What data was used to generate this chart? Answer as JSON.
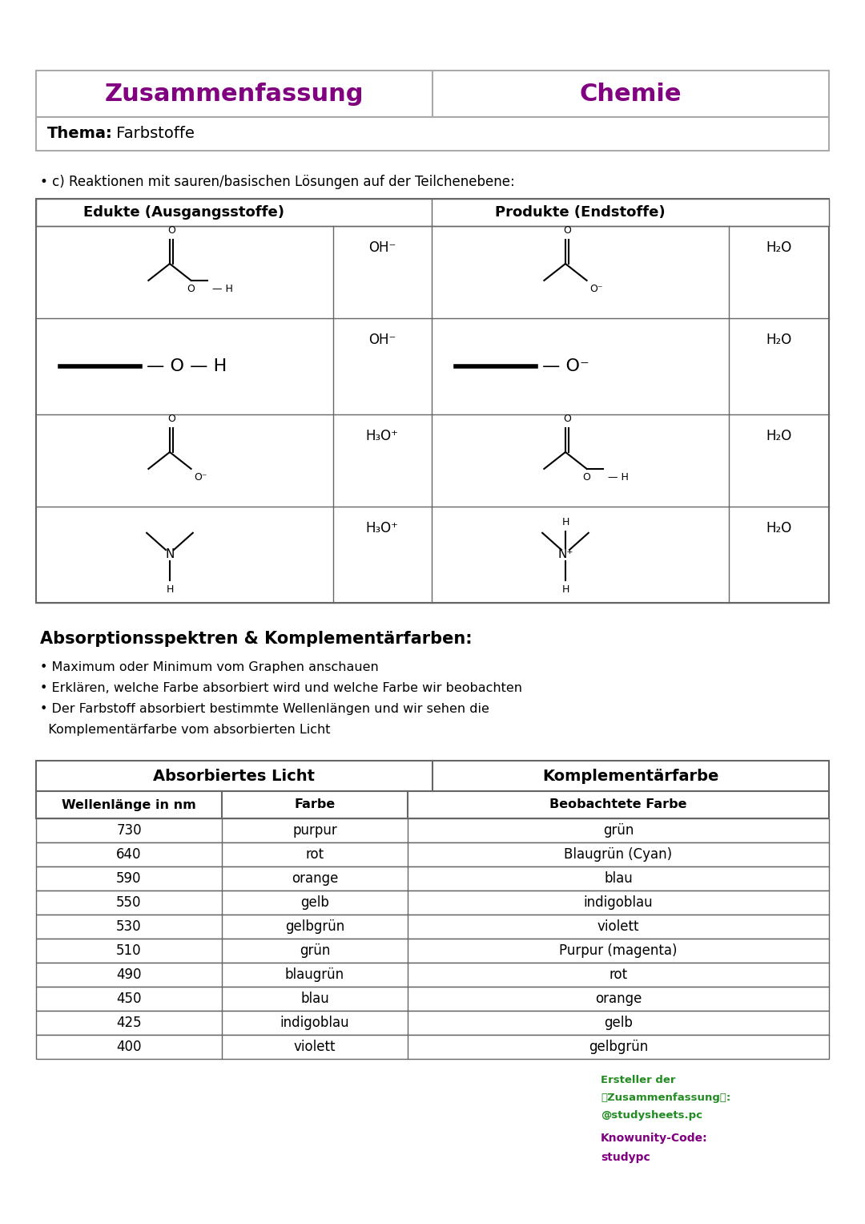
{
  "title_left": "Zusammenfassung",
  "title_right": "Chemie",
  "title_color": "#800080",
  "thema_label": "Thema:",
  "thema_value": " Farbstoffe",
  "bullet_c": "• c) Reaktionen mit sauren/basischen Lösungen auf der Teilchenebene:",
  "table1_col1": "Edukte (Ausgangsstoffe)",
  "table1_col2": "Produkte (Endstoffe)",
  "reagents": [
    "OH⁻",
    "OH⁻",
    "H₃O⁺",
    "H₃O⁺"
  ],
  "products_right": [
    "H₂O",
    "H₂O",
    "H₂O",
    "H₂O"
  ],
  "section2_title": "Absorptionsspektren & Komplementärfarben:",
  "section2_bullets": [
    "• Maximum oder Minimum vom Graphen anschauen",
    "• Erklären, welche Farbe absorbiert wird und welche Farbe wir beobachten",
    "• Der Farbstoff absorbiert bestimmte Wellenlängen und wir sehen die",
    "  Komplementärfarbe vom absorbierten Licht"
  ],
  "table2_header1": "Absorbiertes Licht",
  "table2_header2": "Komplementärfarbe",
  "table2_subheader": [
    "Wellenlänge in nm",
    "Farbe",
    "Beobachtete Farbe"
  ],
  "table2_rows": [
    [
      "730",
      "purpur",
      "grün"
    ],
    [
      "640",
      "rot",
      "Blaugrün (Cyan)"
    ],
    [
      "590",
      "orange",
      "blau"
    ],
    [
      "550",
      "gelb",
      "indigoblau"
    ],
    [
      "530",
      "gelbgrün",
      "violett"
    ],
    [
      "510",
      "grün",
      "Purpur (magenta)"
    ],
    [
      "490",
      "blaugrün",
      "rot"
    ],
    [
      "450",
      "blau",
      "orange"
    ],
    [
      "425",
      "indigoblau",
      "gelb"
    ],
    [
      "400",
      "violett",
      "gelbgrün"
    ]
  ],
  "footer1": "Ersteller der",
  "footer2": "📷Zusammenfassung📷:",
  "footer3": "@studysheets.pc",
  "footer4": "Knowunity-Code:",
  "footer5": "studypc",
  "footer_color1": "#228B22",
  "footer_color2": "#800080",
  "bg_color": "#ffffff"
}
